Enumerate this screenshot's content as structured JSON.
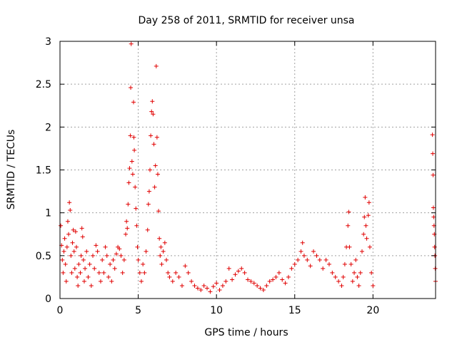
{
  "chart_data": {
    "type": "scatter",
    "title": "Day 258 of 2011, SRMTID for receiver unsa",
    "xlabel": "GPS time / hours",
    "ylabel": "SRMTID / TECUs",
    "xlim": [
      0,
      24
    ],
    "ylim": [
      0,
      3
    ],
    "xticks": [
      0,
      5,
      10,
      15,
      20
    ],
    "xtick_labels": [
      "0",
      "5",
      "10",
      "15",
      "20"
    ],
    "yticks": [
      0,
      0.5,
      1,
      1.5,
      2,
      2.5,
      3
    ],
    "ytick_labels": [
      "0",
      "0.5",
      "1",
      "1.5",
      "2",
      "2.5",
      "3"
    ],
    "grid": true,
    "marker": "plus",
    "series": [
      {
        "color": "#e00000",
        "points": [
          [
            0.05,
            0.85
          ],
          [
            0.1,
            0.62
          ],
          [
            0.15,
            0.45
          ],
          [
            0.2,
            0.3
          ],
          [
            0.25,
            0.55
          ],
          [
            0.3,
            0.7
          ],
          [
            0.35,
            0.4
          ],
          [
            0.4,
            0.2
          ],
          [
            0.45,
            0.6
          ],
          [
            0.5,
            0.9
          ],
          [
            0.55,
            0.75
          ],
          [
            0.6,
            1.12
          ],
          [
            0.65,
            1.03
          ],
          [
            0.7,
            0.5
          ],
          [
            0.75,
            0.3
          ],
          [
            0.8,
            0.65
          ],
          [
            0.85,
            0.8
          ],
          [
            0.9,
            0.55
          ],
          [
            0.95,
            0.35
          ],
          [
            1.0,
            0.78
          ],
          [
            1.05,
            0.6
          ],
          [
            1.1,
            0.25
          ],
          [
            1.15,
            0.15
          ],
          [
            1.2,
            0.4
          ],
          [
            1.3,
            0.3
          ],
          [
            1.35,
            0.5
          ],
          [
            1.4,
            0.82
          ],
          [
            1.45,
            0.72
          ],
          [
            1.5,
            0.45
          ],
          [
            1.55,
            0.2
          ],
          [
            1.6,
            0.35
          ],
          [
            1.7,
            0.55
          ],
          [
            1.8,
            0.25
          ],
          [
            1.9,
            0.4
          ],
          [
            2.0,
            0.15
          ],
          [
            2.1,
            0.5
          ],
          [
            2.2,
            0.35
          ],
          [
            2.3,
            0.62
          ],
          [
            2.4,
            0.55
          ],
          [
            2.5,
            0.3
          ],
          [
            2.6,
            0.2
          ],
          [
            2.7,
            0.45
          ],
          [
            2.8,
            0.3
          ],
          [
            2.9,
            0.6
          ],
          [
            3.0,
            0.5
          ],
          [
            3.1,
            0.25
          ],
          [
            3.2,
            0.4
          ],
          [
            3.3,
            0.2
          ],
          [
            3.4,
            0.45
          ],
          [
            3.5,
            0.35
          ],
          [
            3.6,
            0.52
          ],
          [
            3.7,
            0.6
          ],
          [
            3.8,
            0.58
          ],
          [
            3.9,
            0.5
          ],
          [
            4.0,
            0.3
          ],
          [
            4.1,
            0.45
          ],
          [
            4.2,
            0.75
          ],
          [
            4.25,
            0.9
          ],
          [
            4.3,
            0.82
          ],
          [
            4.35,
            1.1
          ],
          [
            4.4,
            1.35
          ],
          [
            4.45,
            1.52
          ],
          [
            4.5,
            1.9
          ],
          [
            4.52,
            2.46
          ],
          [
            4.55,
            2.97
          ],
          [
            4.6,
            1.6
          ],
          [
            4.65,
            1.45
          ],
          [
            4.7,
            2.29
          ],
          [
            4.72,
            1.88
          ],
          [
            4.75,
            1.73
          ],
          [
            4.8,
            1.3
          ],
          [
            4.85,
            1.05
          ],
          [
            4.9,
            0.85
          ],
          [
            4.95,
            0.6
          ],
          [
            5.0,
            0.45
          ],
          [
            5.1,
            0.3
          ],
          [
            5.2,
            0.2
          ],
          [
            5.3,
            0.4
          ],
          [
            5.4,
            0.3
          ],
          [
            5.5,
            0.55
          ],
          [
            5.6,
            0.8
          ],
          [
            5.65,
            1.1
          ],
          [
            5.7,
            1.25
          ],
          [
            5.75,
            1.5
          ],
          [
            5.8,
            1.9
          ],
          [
            5.85,
            2.18
          ],
          [
            5.9,
            2.3
          ],
          [
            5.95,
            2.15
          ],
          [
            6.0,
            1.8
          ],
          [
            6.05,
            1.3
          ],
          [
            6.1,
            1.55
          ],
          [
            6.15,
            2.71
          ],
          [
            6.2,
            1.88
          ],
          [
            6.25,
            1.45
          ],
          [
            6.3,
            1.02
          ],
          [
            6.35,
            0.7
          ],
          [
            6.4,
            0.5
          ],
          [
            6.45,
            0.6
          ],
          [
            6.5,
            0.4
          ],
          [
            6.6,
            0.55
          ],
          [
            6.7,
            0.65
          ],
          [
            6.8,
            0.45
          ],
          [
            6.9,
            0.3
          ],
          [
            7.0,
            0.25
          ],
          [
            7.2,
            0.2
          ],
          [
            7.4,
            0.3
          ],
          [
            7.6,
            0.25
          ],
          [
            7.8,
            0.15
          ],
          [
            8.0,
            0.38
          ],
          [
            8.2,
            0.3
          ],
          [
            8.4,
            0.2
          ],
          [
            8.6,
            0.15
          ],
          [
            8.8,
            0.12
          ],
          [
            9.0,
            0.1
          ],
          [
            9.2,
            0.15
          ],
          [
            9.4,
            0.12
          ],
          [
            9.6,
            0.08
          ],
          [
            9.8,
            0.14
          ],
          [
            10.0,
            0.18
          ],
          [
            10.2,
            0.1
          ],
          [
            10.4,
            0.15
          ],
          [
            10.6,
            0.2
          ],
          [
            10.8,
            0.35
          ],
          [
            11.0,
            0.22
          ],
          [
            11.2,
            0.28
          ],
          [
            11.4,
            0.32
          ],
          [
            11.6,
            0.35
          ],
          [
            11.8,
            0.3
          ],
          [
            12.0,
            0.22
          ],
          [
            12.2,
            0.2
          ],
          [
            12.4,
            0.18
          ],
          [
            12.6,
            0.15
          ],
          [
            12.8,
            0.12
          ],
          [
            13.0,
            0.1
          ],
          [
            13.2,
            0.15
          ],
          [
            13.4,
            0.2
          ],
          [
            13.6,
            0.22
          ],
          [
            13.8,
            0.25
          ],
          [
            14.0,
            0.3
          ],
          [
            14.2,
            0.22
          ],
          [
            14.4,
            0.18
          ],
          [
            14.6,
            0.25
          ],
          [
            14.8,
            0.35
          ],
          [
            15.0,
            0.4
          ],
          [
            15.2,
            0.45
          ],
          [
            15.4,
            0.55
          ],
          [
            15.5,
            0.65
          ],
          [
            15.6,
            0.5
          ],
          [
            15.8,
            0.45
          ],
          [
            16.0,
            0.38
          ],
          [
            16.2,
            0.55
          ],
          [
            16.4,
            0.5
          ],
          [
            16.6,
            0.45
          ],
          [
            16.8,
            0.35
          ],
          [
            17.0,
            0.45
          ],
          [
            17.2,
            0.4
          ],
          [
            17.4,
            0.3
          ],
          [
            17.6,
            0.25
          ],
          [
            17.8,
            0.2
          ],
          [
            18.0,
            0.15
          ],
          [
            18.1,
            0.25
          ],
          [
            18.2,
            0.4
          ],
          [
            18.3,
            0.6
          ],
          [
            18.4,
            0.85
          ],
          [
            18.45,
            1.01
          ],
          [
            18.5,
            0.6
          ],
          [
            18.6,
            0.4
          ],
          [
            18.7,
            0.2
          ],
          [
            18.8,
            0.3
          ],
          [
            18.9,
            0.45
          ],
          [
            19.0,
            0.25
          ],
          [
            19.1,
            0.15
          ],
          [
            19.2,
            0.3
          ],
          [
            19.3,
            0.55
          ],
          [
            19.4,
            0.75
          ],
          [
            19.45,
            0.95
          ],
          [
            19.5,
            1.18
          ],
          [
            19.55,
            0.85
          ],
          [
            19.6,
            0.7
          ],
          [
            19.7,
            0.97
          ],
          [
            19.75,
            1.12
          ],
          [
            19.8,
            0.6
          ],
          [
            19.9,
            0.3
          ],
          [
            20.0,
            0.15
          ],
          [
            23.8,
            1.91
          ],
          [
            23.82,
            1.69
          ],
          [
            23.84,
            1.44
          ],
          [
            23.86,
            1.06
          ],
          [
            23.88,
            0.95
          ],
          [
            23.9,
            0.85
          ],
          [
            23.92,
            0.75
          ],
          [
            23.94,
            0.6
          ],
          [
            23.96,
            0.5
          ],
          [
            23.98,
            0.35
          ],
          [
            24.0,
            0.2
          ]
        ]
      }
    ]
  }
}
